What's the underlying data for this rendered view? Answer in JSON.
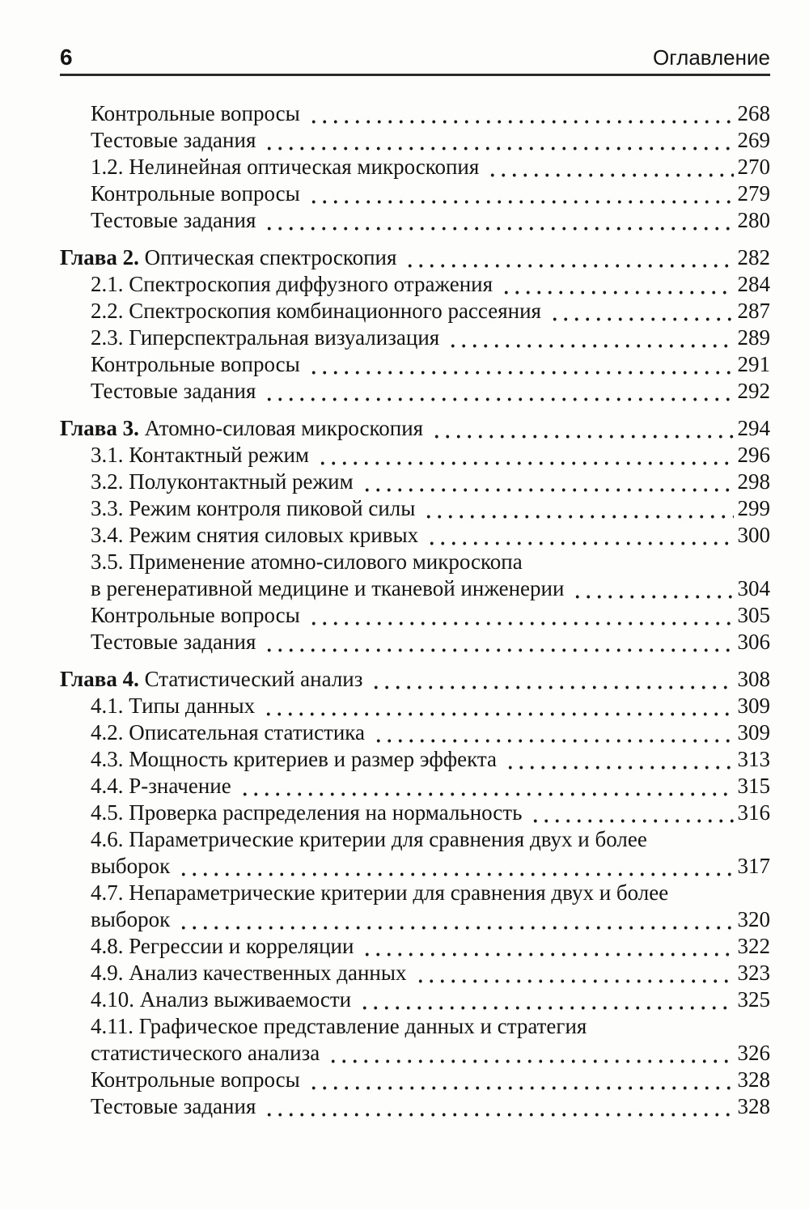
{
  "page_header": {
    "page_number": "6",
    "title": "Оглавление"
  },
  "colors": {
    "ink": "#141414",
    "paper": "#fdfdfc",
    "rule": "#2a2a2a"
  },
  "toc_rows": [
    {
      "indent": true,
      "text": "Контрольные вопросы",
      "page": "268"
    },
    {
      "indent": true,
      "text": "Тестовые задания",
      "page": "269"
    },
    {
      "indent": true,
      "text": "1.2. Нелинейная оптическая микроскопия",
      "page": "270"
    },
    {
      "indent": true,
      "text": "Контрольные вопросы",
      "page": "279"
    },
    {
      "indent": true,
      "text": "Тестовые задания",
      "page": "280"
    },
    {
      "section_gap": true,
      "chapter": "Глава 2.",
      "text": "Оптическая спектроскопия",
      "page": "282"
    },
    {
      "indent": true,
      "text": "2.1. Спектроскопия диффузного отражения",
      "page": "284"
    },
    {
      "indent": true,
      "text": "2.2. Спектроскопия комбинационного рассеяния",
      "page": "287"
    },
    {
      "indent": true,
      "text": "2.3. Гиперспектральная визуализация",
      "page": "289"
    },
    {
      "indent": true,
      "text": "Контрольные вопросы",
      "page": "291"
    },
    {
      "indent": true,
      "text": "Тестовые задания",
      "page": "292"
    },
    {
      "section_gap": true,
      "chapter": "Глава 3.",
      "text": "Атомно-силовая микроскопия",
      "page": "294"
    },
    {
      "indent": true,
      "text": "3.1. Контактный режим",
      "page": "296"
    },
    {
      "indent": true,
      "text": "3.2. Полуконтактный режим",
      "page": "298"
    },
    {
      "indent": true,
      "text": "3.3. Режим контроля пиковой силы",
      "page": "299"
    },
    {
      "indent": true,
      "text": "3.4. Режим снятия силовых кривых",
      "page": "300"
    },
    {
      "indent": true,
      "text": "3.5. Применение атомно-силового микроскопа"
    },
    {
      "indent": true,
      "continuation": true,
      "text": "в регенеративной медицине и тканевой инженерии",
      "page": "304"
    },
    {
      "indent": true,
      "text": "Контрольные вопросы",
      "page": "305"
    },
    {
      "indent": true,
      "text": "Тестовые задания",
      "page": "306"
    },
    {
      "section_gap": true,
      "chapter": "Глава 4.",
      "text": "Статистический анализ",
      "page": "308"
    },
    {
      "indent": true,
      "text": "4.1. Типы данных",
      "page": "309"
    },
    {
      "indent": true,
      "text": "4.2. Описательная статистика",
      "page": "309"
    },
    {
      "indent": true,
      "text": "4.3. Мощность критериев и размер эффекта",
      "page": "313"
    },
    {
      "indent": true,
      "text": "4.4. P-значение",
      "page": "315"
    },
    {
      "indent": true,
      "text": "4.5. Проверка распределения на нормальность",
      "page": "316"
    },
    {
      "indent": true,
      "text": "4.6. Параметрические критерии для сравнения двух и более"
    },
    {
      "indent": true,
      "continuation": true,
      "text": "выборок",
      "page": "317"
    },
    {
      "indent": true,
      "text": "4.7. Непараметрические критерии для сравнения двух и более"
    },
    {
      "indent": true,
      "continuation": true,
      "text": "выборок",
      "page": "320"
    },
    {
      "indent": true,
      "text": "4.8. Регрессии и корреляции",
      "page": "322"
    },
    {
      "indent": true,
      "text": "4.9. Анализ качественных данных",
      "page": "323"
    },
    {
      "indent": true,
      "text": "4.10. Анализ выживаемости",
      "page": "325"
    },
    {
      "indent": true,
      "text": "4.11. Графическое представление данных и стратегия"
    },
    {
      "indent": true,
      "continuation": true,
      "text": "статистического анализа",
      "page": "326"
    },
    {
      "indent": true,
      "text": "Контрольные вопросы",
      "page": "328"
    },
    {
      "indent": true,
      "text": "Тестовые задания",
      "page": "328"
    }
  ]
}
